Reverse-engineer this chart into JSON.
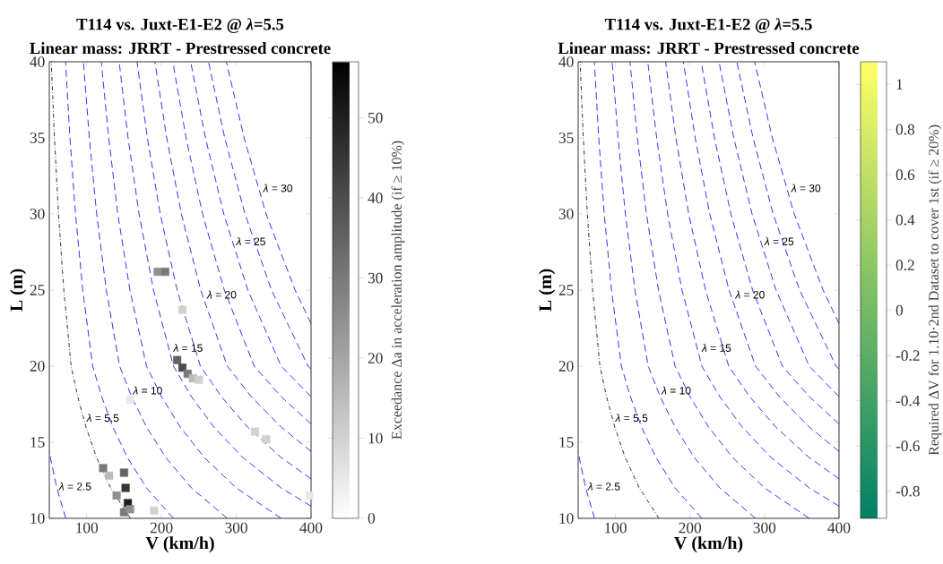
{
  "chart_data": [
    {
      "type": "line",
      "title": "T114 vs. Juxt-E1-E2 @ *λ*=5.5",
      "subtitle": "Linear mass: JRRT - Prestressed concrete",
      "xlabel": "V (km/h)",
      "ylabel": "L (m)",
      "clabel": "Exceedance  Δa  in acceleration amplitude (if ≥ 10%)",
      "xlim": [
        50,
        400
      ],
      "ylim": [
        10,
        40
      ],
      "xticks": [
        100,
        200,
        300,
        400
      ],
      "yticks": [
        10,
        15,
        20,
        25,
        30,
        35,
        40
      ],
      "clim": [
        0,
        57
      ],
      "cticks": [
        0,
        10,
        20,
        30,
        40,
        50
      ],
      "series": [
        {
          "type": "scatter",
          "marker": "square",
          "colors": [
            "#8f8f8f",
            "#797979",
            "#d2d2d2",
            "#626262",
            "#4c4c4c",
            "#797979",
            "#bcbcbc",
            "#d2d2d2",
            "#e9e9e9",
            "#797979",
            "#bcbcbc",
            "#8f8f8f",
            "#626262",
            "#363636",
            "#1f1f1f",
            "#797979",
            "#8f8f8f",
            "#d2d2d2",
            "#d2d2d2",
            "#d2d2d2",
            "#e9e9e9"
          ],
          "x": [
            195,
            205,
            228,
            221,
            228,
            235,
            242,
            250,
            158,
            122,
            130,
            140,
            150,
            152,
            155,
            150,
            158,
            190,
            325,
            340,
            398
          ],
          "values": [
            26.2,
            26.2,
            23.7,
            20.4,
            19.9,
            19.5,
            19.2,
            19.1,
            17.8,
            13.3,
            12.8,
            11.5,
            13.0,
            12.0,
            11.0,
            10.4,
            10.6,
            10.5,
            15.7,
            15.2,
            11.5
          ],
          "cvalues": [
            25,
            30,
            10,
            35,
            40,
            30,
            15,
            10,
            5,
            30,
            15,
            25,
            35,
            45,
            50,
            30,
            25,
            10,
            10,
            10,
            5
          ]
        },
        {
          "color": "#0000ff",
          "line_style": "dashed",
          "x": [
            72,
            60,
            51.4,
            50
          ],
          "values": [
            10,
            12,
            14,
            14.4
          ]
        },
        {
          "color": "#000000",
          "line_style": "dashdot",
          "x": [
            158.4,
            132,
            113.1,
            99,
            88,
            79.2,
            69.4,
            62.3,
            56.9,
            52.6
          ],
          "values": [
            10,
            12,
            14,
            16,
            18,
            20,
            25,
            30,
            35,
            40
          ]
        },
        {
          "color": "#0000ff",
          "line_style": "dashed",
          "x": [
            216,
            180,
            154.3,
            135,
            120,
            108,
            94.7,
            85,
            77.6,
            71.7
          ],
          "values": [
            10,
            12,
            14,
            16,
            18,
            20,
            25,
            30,
            35,
            40
          ]
        },
        {
          "color": "#0000ff",
          "line_style": "dashed",
          "x": [
            288,
            240,
            205.7,
            180,
            160,
            144,
            126.2,
            113.3,
            103.5,
            95.6
          ],
          "values": [
            10,
            12,
            14,
            16,
            18,
            20,
            25,
            30,
            35,
            40
          ]
        },
        {
          "color": "#0000ff",
          "line_style": "dashed",
          "x": [
            360,
            300,
            257.1,
            225,
            200,
            180,
            157.8,
            141.6,
            129.4,
            119.5
          ],
          "values": [
            10,
            12,
            14,
            16,
            18,
            20,
            25,
            30,
            35,
            40
          ]
        },
        {
          "color": "#0000ff",
          "line_style": "dashed",
          "x": [
            400,
            360,
            308.6,
            270,
            240,
            216,
            189.3,
            170,
            155.3,
            143.4
          ],
          "values": [
            10.8,
            12,
            14,
            16,
            18,
            20,
            25,
            30,
            35,
            40
          ]
        },
        {
          "color": "#0000ff",
          "line_style": "dashed",
          "x": [
            400,
            360,
            315,
            280,
            252,
            220.9,
            198.3,
            181.1,
            167.3
          ],
          "values": [
            12.6,
            14,
            16,
            18,
            20,
            25,
            30,
            35,
            40
          ]
        },
        {
          "color": "#0000ff",
          "line_style": "dashed",
          "x": [
            400,
            360,
            320,
            288,
            252.4,
            226.6,
            207,
            191.2
          ],
          "values": [
            14.4,
            16,
            18,
            20,
            25,
            30,
            35,
            40
          ]
        },
        {
          "color": "#0000ff",
          "line_style": "dashed",
          "x": [
            400,
            360,
            324,
            284,
            254.9,
            232.9,
            215.1
          ],
          "values": [
            16.2,
            18,
            20,
            25,
            30,
            35,
            40
          ]
        },
        {
          "color": "#0000ff",
          "line_style": "dashed",
          "x": [
            400,
            360,
            315.5,
            283.3,
            258.8,
            239
          ],
          "values": [
            18,
            20,
            25,
            30,
            35,
            40
          ]
        },
        {
          "color": "#0000ff",
          "line_style": "dashed",
          "x": [
            400,
            396,
            347.1,
            311.6,
            284.6,
            262.9
          ],
          "values": [
            19.8,
            20,
            25,
            30,
            35,
            40
          ]
        },
        {
          "color": "#0000ff",
          "line_style": "dashed",
          "x": [
            400,
            378.6,
            339.9,
            310.5,
            286.8
          ],
          "values": [
            22.8,
            25,
            30,
            35,
            40
          ]
        }
      ],
      "annotations": [
        {
          "text": "*λ* = 30",
          "x": 334,
          "y": 31.7
        },
        {
          "text": "*λ* = 25",
          "x": 298,
          "y": 28.2
        },
        {
          "text": "*λ* = 20",
          "x": 259,
          "y": 24.7
        },
        {
          "text": "*λ* = 15",
          "x": 214,
          "y": 21.2
        },
        {
          "text": "*λ* = 10",
          "x": 160,
          "y": 18.4
        },
        {
          "text": "*λ* = 5.5",
          "x": 98,
          "y": 16.6
        },
        {
          "text": "*λ* = 2.5",
          "x": 61,
          "y": 12.1
        }
      ]
    },
    {
      "type": "line",
      "title": "T114 vs. Juxt-E1-E2 @ *λ*=5.5",
      "subtitle": "Linear mass: JRRT - Prestressed concrete",
      "xlabel": "V (km/h)",
      "ylabel": "L (m)",
      "clabel": "Required ΔV for 1.10·2nd Dataset to cover 1st (if ≥ 20%)",
      "xlim": [
        50,
        400
      ],
      "ylim": [
        10,
        40
      ],
      "xticks": [
        100,
        200,
        300,
        400
      ],
      "yticks": [
        10,
        15,
        20,
        25,
        30,
        35,
        40
      ],
      "clim": [
        -0.92,
        1.1
      ],
      "cticks": [
        -0.8,
        -0.6,
        -0.4,
        -0.2,
        0,
        0.2,
        0.4,
        0.6,
        0.8,
        1
      ],
      "series": [
        {
          "color": "#0000ff",
          "line_style": "dashed",
          "x": [
            72,
            60,
            51.4,
            50
          ],
          "values": [
            10,
            12,
            14,
            14.4
          ]
        },
        {
          "color": "#000000",
          "line_style": "dashdot",
          "x": [
            158.4,
            132,
            113.1,
            99,
            88,
            79.2,
            69.4,
            62.3,
            56.9,
            52.6
          ],
          "values": [
            10,
            12,
            14,
            16,
            18,
            20,
            25,
            30,
            35,
            40
          ]
        },
        {
          "color": "#0000ff",
          "line_style": "dashed",
          "x": [
            216,
            180,
            154.3,
            135,
            120,
            108,
            94.7,
            85,
            77.6,
            71.7
          ],
          "values": [
            10,
            12,
            14,
            16,
            18,
            20,
            25,
            30,
            35,
            40
          ]
        },
        {
          "color": "#0000ff",
          "line_style": "dashed",
          "x": [
            288,
            240,
            205.7,
            180,
            160,
            144,
            126.2,
            113.3,
            103.5,
            95.6
          ],
          "values": [
            10,
            12,
            14,
            16,
            18,
            20,
            25,
            30,
            35,
            40
          ]
        },
        {
          "color": "#0000ff",
          "line_style": "dashed",
          "x": [
            360,
            300,
            257.1,
            225,
            200,
            180,
            157.8,
            141.6,
            129.4,
            119.5
          ],
          "values": [
            10,
            12,
            14,
            16,
            18,
            20,
            25,
            30,
            35,
            40
          ]
        },
        {
          "color": "#0000ff",
          "line_style": "dashed",
          "x": [
            400,
            360,
            308.6,
            270,
            240,
            216,
            189.3,
            170,
            155.3,
            143.4
          ],
          "values": [
            10.8,
            12,
            14,
            16,
            18,
            20,
            25,
            30,
            35,
            40
          ]
        },
        {
          "color": "#0000ff",
          "line_style": "dashed",
          "x": [
            400,
            360,
            315,
            280,
            252,
            220.9,
            198.3,
            181.1,
            167.3
          ],
          "values": [
            12.6,
            14,
            16,
            18,
            20,
            25,
            30,
            35,
            40
          ]
        },
        {
          "color": "#0000ff",
          "line_style": "dashed",
          "x": [
            400,
            360,
            320,
            288,
            252.4,
            226.6,
            207,
            191.2
          ],
          "values": [
            14.4,
            16,
            18,
            20,
            25,
            30,
            35,
            40
          ]
        },
        {
          "color": "#0000ff",
          "line_style": "dashed",
          "x": [
            400,
            360,
            324,
            284,
            254.9,
            232.9,
            215.1
          ],
          "values": [
            16.2,
            18,
            20,
            25,
            30,
            35,
            40
          ]
        },
        {
          "color": "#0000ff",
          "line_style": "dashed",
          "x": [
            400,
            360,
            315.5,
            283.3,
            258.8,
            239
          ],
          "values": [
            18,
            20,
            25,
            30,
            35,
            40
          ]
        },
        {
          "color": "#0000ff",
          "line_style": "dashed",
          "x": [
            400,
            396,
            347.1,
            311.6,
            284.6,
            262.9
          ],
          "values": [
            19.8,
            20,
            25,
            30,
            35,
            40
          ]
        },
        {
          "color": "#0000ff",
          "line_style": "dashed",
          "x": [
            400,
            378.6,
            339.9,
            310.5,
            286.8
          ],
          "values": [
            22.8,
            25,
            30,
            35,
            40
          ]
        }
      ],
      "annotations": [
        {
          "text": "*λ* = 30",
          "x": 334,
          "y": 31.7
        },
        {
          "text": "*λ* = 25",
          "x": 298,
          "y": 28.2
        },
        {
          "text": "*λ* = 20",
          "x": 259,
          "y": 24.7
        },
        {
          "text": "*λ* = 15",
          "x": 214,
          "y": 21.2
        },
        {
          "text": "*λ* = 10",
          "x": 160,
          "y": 18.4
        },
        {
          "text": "*λ* = 5.5",
          "x": 98,
          "y": 16.6
        },
        {
          "text": "*λ* = 2.5",
          "x": 61,
          "y": 12.1
        }
      ]
    }
  ]
}
